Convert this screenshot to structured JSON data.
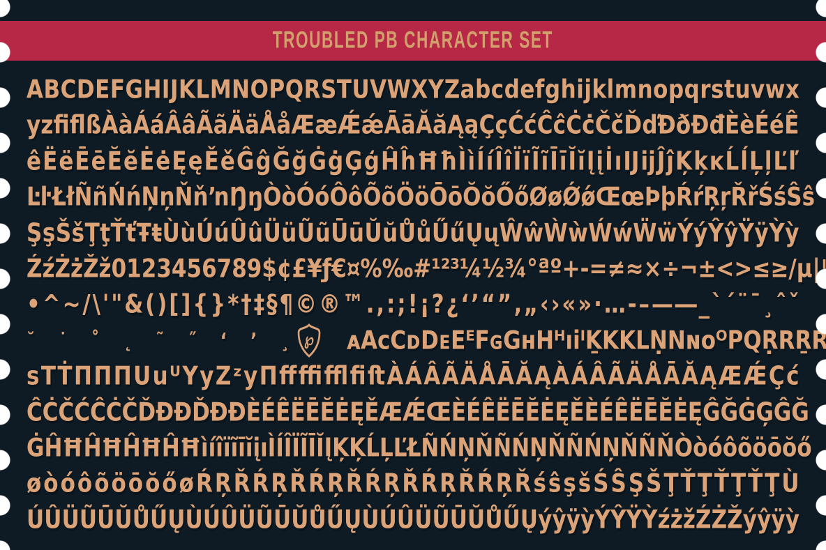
{
  "banner": {
    "title": "TROUBLED PB CHARACTER SET",
    "bg_color": "#B62845",
    "text_color": "#D2A06C"
  },
  "colors": {
    "background": "#0E1B24",
    "glyphs": "#DBA377",
    "perforation": "#FFFFFF"
  },
  "logo": {
    "icon": "pb-shield-monogram",
    "glyph": "℘"
  },
  "glyph_rows": [
    {
      "line": "ABCDEFGHIJKLMNOPQRSTUVWXYZabcdefghijklmnopqrstuvwx"
    },
    {
      "line": "yzﬁﬂßÀàÁáÂâÃãÄäÅåÆæǼǽĀāĂăĄąÇçĆćĈĉĊċČčĎďÐðĐđÈèÉéÊ"
    },
    {
      "line": "êËëĒēĔĕĖėĘęĚěĜĝĞğĠġĢģĤĥĦħÌìÍíÎîÏïĨĩĪīĬĭĮįİıĲĳĴĵĶķĸĹĺĻļĽľ"
    },
    {
      "line": "ĿŀŁłÑñŃńŅņŇňŉŊŋÒòÓóÔôÕõÖöŌōŎŏŐőØøǾǿŒœÞþŔŕŖŗŘřŚśŜŝ"
    },
    {
      "line": "ŞşŠšŢţŤťŦŧÙùÚúÛûÜüŨũŪūŬŭŮůŰűŲųŴŵẀẁẂẃẄẅÝýŶŷŸÿỲỳ"
    },
    {
      "line": "ŹźŻżŽž0123456789$¢£¥ƒ€¤%‰#¹²³¼½¾°ªº+-=≠≈×÷¬±<>≤≥/µ|¦@"
    },
    {
      "line": "•^~/\\'\"&()[]{}*†‡§¶©®™.,:;!¡?¿‘’“”‚„‹›«»·…-–—―_`´¨¯¸ˆˇ"
    },
    {
      "left": "˘˙˚˛˜˝ʻʼ¸",
      "logo": "pb-shield-monogram",
      "right": "ᴀAᴄCᴅDᴇEᴱFɢGʜHᴴıiᴵḴKKLṆNɴᴏᴼPQṚRṞRṞs"
    },
    {
      "line": "sTṪΠΠΠUuᵁYyZᶻyΠﬀﬃﬄﬁﬅÀÁÂÃÄÅĀĂĄÀÁÂÃÄÅĀĂĄÆǼÇć"
    },
    {
      "line": "ĈĊČĆĈĊČĎĐÐĎĐÐÈÉÊËĒĔĖĘĚÆǼŒÈÉÊËĒĔĖĘĚÈÉÊËĒĔĖĘĜĞĠĢĜĞ"
    },
    {
      "line": "ĠĤĦĤĦĤĦĤĦìíîïĩīĭįıÌÍÎÏĨĪĬĮĶĶĹĻĽŁÑŃŅŇÑŃŅŇÑŃŅŇÑŇÒòóôõöōŏő"
    },
    {
      "line": "øòóôõöōŏőøŔŖŘŔŖŘŔŖŘŔŖŘŔŖŘŔŖŘśŝşšŚŜŞŠŢŤŢŤŢŤŢÙ"
    },
    {
      "line": "ÚÛÜŨŪŬŮŰŲÙÚÛÜŨŪŬŮŰŲÙÚÛÜŨŪŬŮŰŲýŷÿỳÝŶŸỲźżžŹŻŽýŷÿỳ"
    }
  ]
}
